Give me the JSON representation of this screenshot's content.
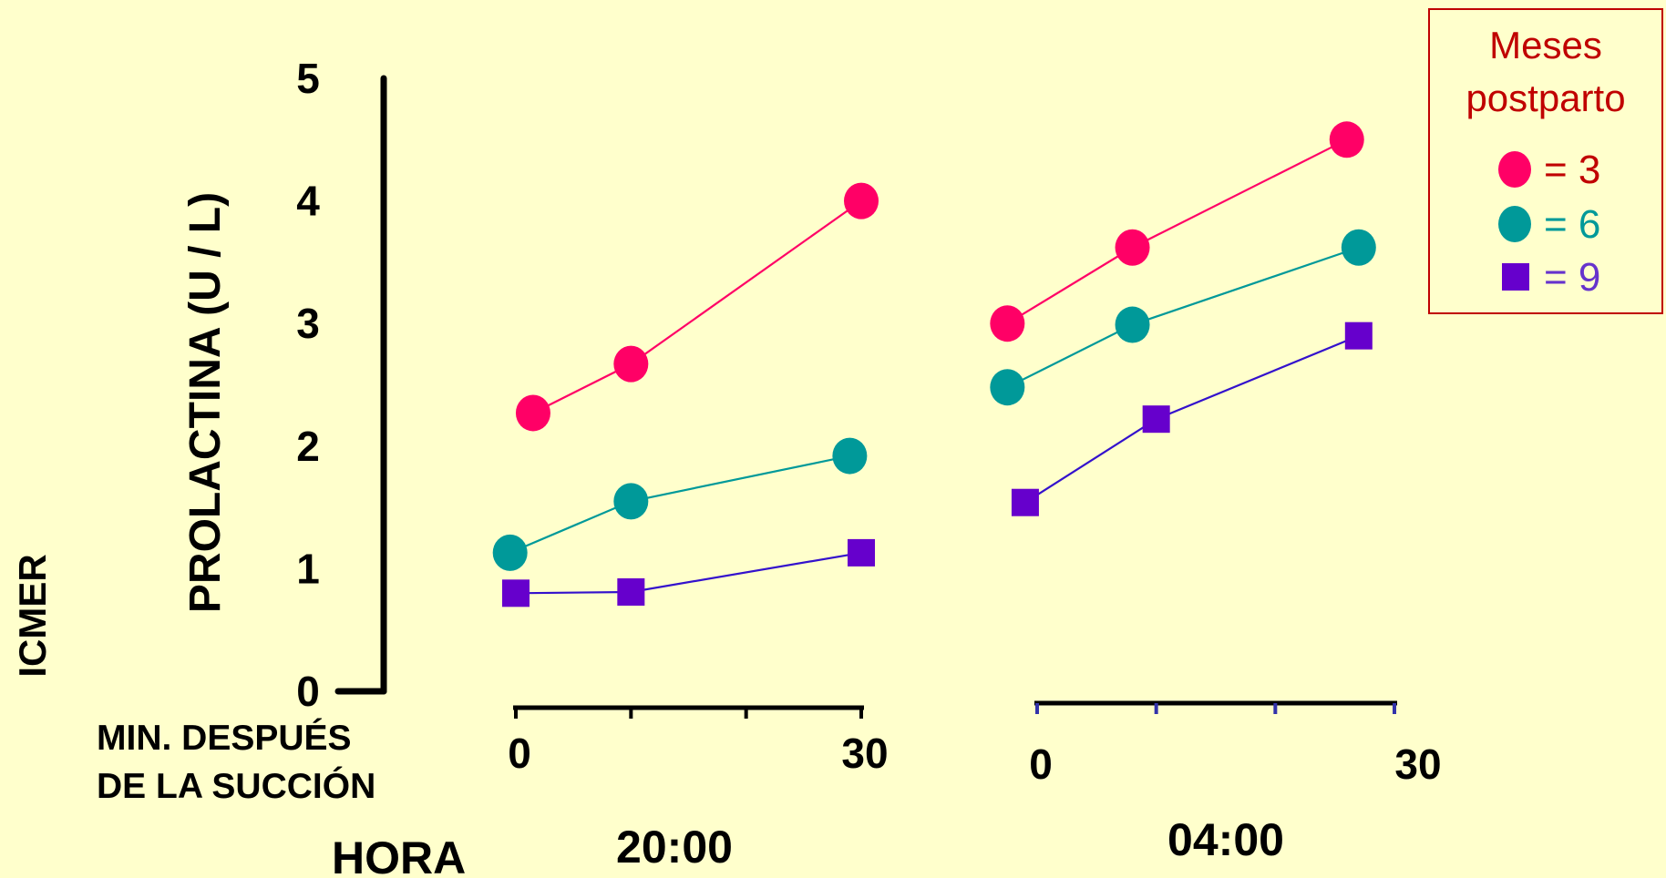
{
  "side_label": "ICMER",
  "chart_data": {
    "type": "line",
    "ylabel": "PROLACTINA (U / L)",
    "yticks": [
      0,
      1,
      2,
      3,
      4,
      5
    ],
    "ylim": [
      0,
      5
    ],
    "xlabel": [
      "MIN. DESPUÉS",
      "DE LA SUCCIÓN"
    ],
    "hour_label": "HORA",
    "x_range": [
      0,
      30
    ],
    "panels": [
      {
        "hour": "20:00",
        "tick_labels": [
          "0",
          "30"
        ],
        "ticks": [
          0,
          10,
          20,
          30
        ],
        "series": [
          {
            "key": "m3",
            "x": [
              1.5,
              10,
              30
            ],
            "y": [
              2.27,
              2.67,
              4.0
            ]
          },
          {
            "key": "m6",
            "x": [
              -0.5,
              10,
              29
            ],
            "y": [
              1.13,
              1.55,
              1.92
            ]
          },
          {
            "key": "m9",
            "x": [
              0,
              10,
              30
            ],
            "y": [
              0.8,
              0.81,
              1.13
            ]
          }
        ]
      },
      {
        "hour": "04:00",
        "tick_labels": [
          "0",
          "30"
        ],
        "ticks": [
          0,
          10,
          20,
          30
        ],
        "series": [
          {
            "key": "m3",
            "x": [
              -2.5,
              8,
              26
            ],
            "y": [
              3.0,
              3.62,
              4.5
            ]
          },
          {
            "key": "m6",
            "x": [
              -2.5,
              8,
              27
            ],
            "y": [
              2.48,
              2.99,
              3.62
            ]
          },
          {
            "key": "m9",
            "x": [
              -1,
              10,
              27
            ],
            "y": [
              1.54,
              2.22,
              2.9
            ]
          }
        ]
      }
    ],
    "legend": {
      "title": [
        "Meses",
        "postparto"
      ],
      "placement": "top-right",
      "items": [
        {
          "key": "m3",
          "label": "= 3",
          "marker": "circle",
          "color": "#FF0066",
          "text_color": "#C00000"
        },
        {
          "key": "m6",
          "label": "= 6",
          "marker": "circle",
          "color": "#009999",
          "text_color": "#009999"
        },
        {
          "key": "m9",
          "label": "= 9",
          "marker": "square",
          "color": "#6600CC",
          "text_color": "#6633CC"
        }
      ]
    },
    "colors": {
      "background": "#FFFFCC",
      "axis": "#000000",
      "legend_border": "#C00000",
      "line_m3": "#FF0066",
      "line_m6": "#009999",
      "line_m9": "#3311CC",
      "panel2_ticks": "#3333AA"
    }
  }
}
